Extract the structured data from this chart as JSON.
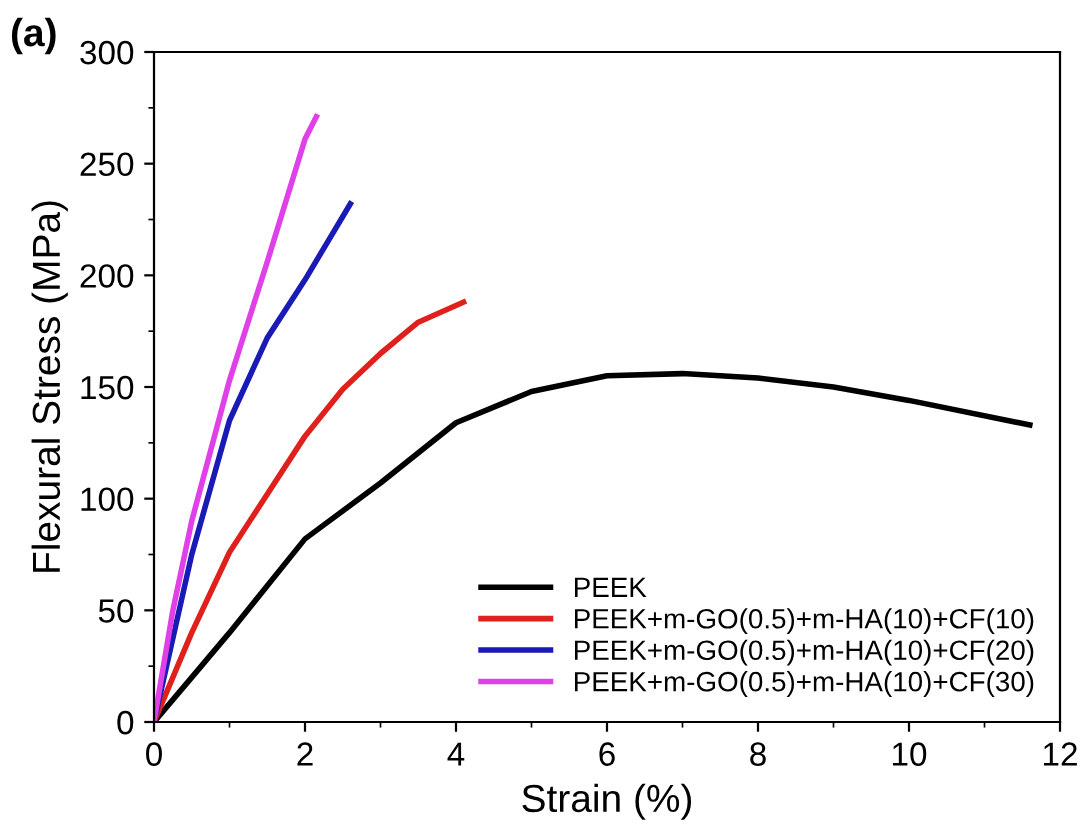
{
  "chart_data": {
    "type": "line",
    "title": "(a)",
    "xlabel": "Strain (%)",
    "ylabel": "Flexural Stress (MPa)",
    "xlim": [
      0,
      12
    ],
    "ylim": [
      0,
      300
    ],
    "xticks": [
      0,
      2,
      4,
      6,
      8,
      10,
      12
    ],
    "yticks": [
      0,
      50,
      100,
      150,
      200,
      250,
      300
    ],
    "grid": false,
    "legend": "bottom right",
    "marker": "none",
    "line_style": "solid",
    "series": [
      {
        "name": "PEEK",
        "color": "#000000",
        "x": [
          0,
          0.5,
          1,
          2,
          3,
          4,
          5,
          6,
          7,
          8,
          9,
          10,
          11.6
        ],
        "values": [
          0,
          20,
          40,
          82,
          107,
          134,
          148,
          155,
          156,
          154,
          150,
          144,
          133
        ]
      },
      {
        "name": "PEEK+m-GO(0.5)+m-HA(10)+CF(10)",
        "color": "#e0201c",
        "x": [
          0,
          0.5,
          1,
          2,
          2.5,
          3,
          3.5,
          4.1
        ],
        "values": [
          0,
          40,
          76,
          128,
          149,
          165,
          179,
          188
        ]
      },
      {
        "name": "PEEK+m-GO(0.5)+m-HA(10)+CF(20)",
        "color": "#1a1ab4",
        "x": [
          0,
          0.5,
          1,
          1.5,
          2,
          2.3,
          2.6
        ],
        "values": [
          0,
          75,
          135,
          172,
          198,
          215,
          232
        ]
      },
      {
        "name": "PEEK+m-GO(0.5)+m-HA(10)+CF(30)",
        "color": "#e040e8",
        "x": [
          0,
          0.25,
          0.5,
          1,
          1.5,
          2,
          2.15
        ],
        "values": [
          0,
          50,
          90,
          153,
          206,
          261,
          271
        ]
      }
    ]
  }
}
